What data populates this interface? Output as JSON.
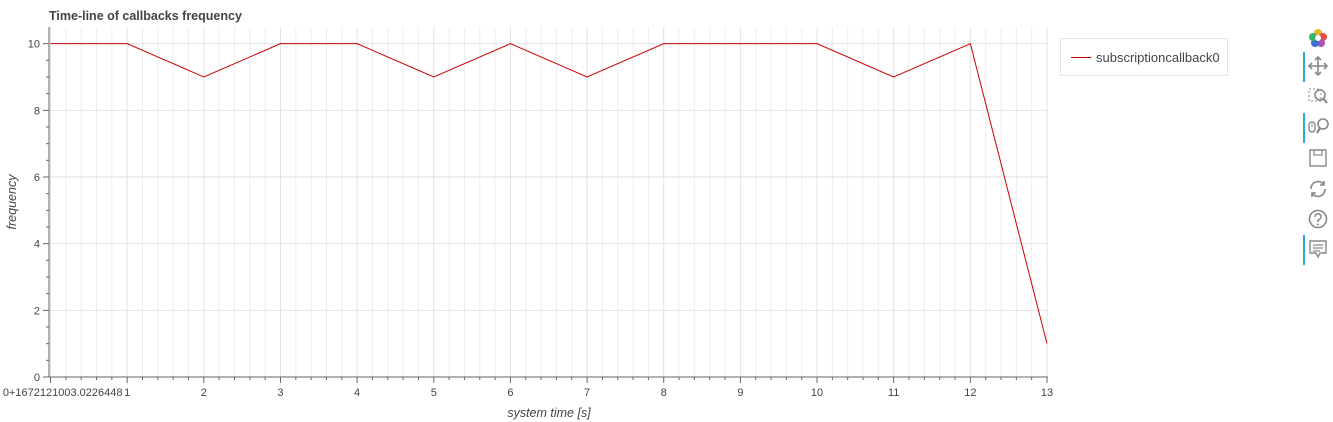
{
  "chart_data": {
    "type": "line",
    "title": "Time-line of callbacks frequency",
    "xlabel": "system time [s]",
    "ylabel": "frequency",
    "x_tick_labels": [
      "0+1672121003.0226448",
      "1",
      "2",
      "3",
      "4",
      "5",
      "6",
      "7",
      "8",
      "9",
      "10",
      "11",
      "12",
      "13"
    ],
    "y_tick_labels": [
      "0",
      "2",
      "4",
      "6",
      "8",
      "10"
    ],
    "xlim": [
      0,
      13
    ],
    "ylim": [
      0,
      10.5
    ],
    "grid": true,
    "legend_position": "right",
    "series": [
      {
        "name": "subscriptioncallback0",
        "color": "#cc0000",
        "x": [
          0,
          1,
          2,
          3,
          4,
          5,
          6,
          7,
          8,
          9,
          10,
          11,
          12,
          13
        ],
        "y": [
          10,
          10,
          9,
          10,
          10,
          9,
          10,
          9,
          10,
          10,
          10,
          9,
          10,
          1
        ]
      }
    ]
  },
  "toolbar": {
    "tools": [
      {
        "icon": "bokeh-logo-icon",
        "active": false
      },
      {
        "icon": "pan-icon",
        "active": true
      },
      {
        "icon": "box-zoom-icon",
        "active": false
      },
      {
        "icon": "wheel-zoom-icon",
        "active": true
      },
      {
        "icon": "save-icon",
        "active": false
      },
      {
        "icon": "reset-icon",
        "active": false
      },
      {
        "icon": "help-icon",
        "active": false
      },
      {
        "icon": "hover-icon",
        "active": true
      }
    ]
  }
}
